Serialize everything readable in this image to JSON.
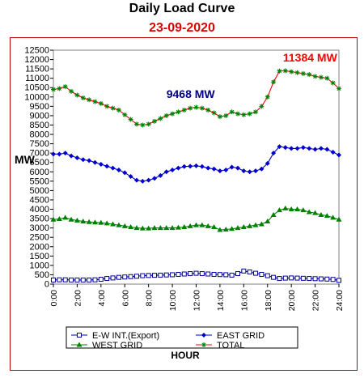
{
  "chart_data": {
    "type": "line",
    "title": "Daily Load Curve",
    "subtitle": "23-09-2020",
    "xlabel": "HOUR",
    "ylabel": "MW",
    "ylim": [
      0,
      12500
    ],
    "ytick_step": 500,
    "yticks": [
      "0",
      "500",
      "1000",
      "1500",
      "2000",
      "2500",
      "3000",
      "3500",
      "4000",
      "4500",
      "5000",
      "5500",
      "6000",
      "6500",
      "7000",
      "7500",
      "8000",
      "8500",
      "9000",
      "9500",
      "10000",
      "10500",
      "11000",
      "11500",
      "12000",
      "12500"
    ],
    "xlim": [
      0,
      24
    ],
    "xticks": [
      0,
      2,
      4,
      6,
      8,
      10,
      12,
      14,
      16,
      18,
      20,
      22,
      24
    ],
    "xtick_labels": [
      "0:00",
      "2:00",
      "4:00",
      "6:00",
      "8:00",
      "10:00",
      "12:00",
      "14:00",
      "16:00",
      "18:00",
      "20:00",
      "22:00",
      "24:00"
    ],
    "x": [
      0,
      0.5,
      1,
      1.5,
      2,
      2.5,
      3,
      3.5,
      4,
      4.5,
      5,
      5.5,
      6,
      6.5,
      7,
      7.5,
      8,
      8.5,
      9,
      9.5,
      10,
      10.5,
      11,
      11.5,
      12,
      12.5,
      13,
      13.5,
      14,
      14.5,
      15,
      15.5,
      16,
      16.5,
      17,
      17.5,
      18,
      18.5,
      19,
      19.5,
      20,
      20.5,
      21,
      21.5,
      22,
      22.5,
      23,
      23.5,
      24
    ],
    "series": [
      {
        "name": "E-W INT.(Export)",
        "color": "#000099",
        "marker": "square-open",
        "values": [
          220,
          230,
          230,
          220,
          220,
          220,
          220,
          230,
          260,
          300,
          330,
          360,
          380,
          400,
          420,
          450,
          460,
          470,
          480,
          490,
          500,
          520,
          540,
          560,
          580,
          560,
          540,
          520,
          510,
          500,
          480,
          560,
          700,
          650,
          580,
          520,
          450,
          360,
          300,
          320,
          330,
          320,
          310,
          300,
          290,
          280,
          270,
          250,
          200
        ]
      },
      {
        "name": "EAST GRID",
        "color": "#0000cc",
        "marker": "diamond",
        "values": [
          6950,
          6950,
          7000,
          6850,
          6750,
          6650,
          6600,
          6500,
          6400,
          6300,
          6200,
          6100,
          5950,
          5750,
          5550,
          5500,
          5550,
          5650,
          5800,
          6000,
          6100,
          6200,
          6280,
          6300,
          6320,
          6280,
          6200,
          6150,
          6050,
          6100,
          6250,
          6200,
          6050,
          6000,
          6050,
          6150,
          6450,
          7000,
          7350,
          7300,
          7250,
          7250,
          7300,
          7250,
          7200,
          7250,
          7200,
          7050,
          6900
        ]
      },
      {
        "name": "WEST GRID",
        "color": "#008000",
        "marker": "triangle",
        "values": [
          3450,
          3480,
          3550,
          3450,
          3400,
          3350,
          3320,
          3300,
          3280,
          3250,
          3200,
          3150,
          3100,
          3050,
          3000,
          2980,
          2980,
          3000,
          3000,
          3000,
          3000,
          3020,
          3050,
          3100,
          3150,
          3150,
          3100,
          3050,
          2900,
          2920,
          2950,
          3000,
          3050,
          3100,
          3150,
          3200,
          3350,
          3700,
          3950,
          4050,
          4000,
          4000,
          3950,
          3850,
          3800,
          3700,
          3650,
          3550,
          3450
        ]
      },
      {
        "name": "TOTAL",
        "color": "#ff0000",
        "marker": "star",
        "values": [
          10400,
          10450,
          10550,
          10300,
          10100,
          9950,
          9850,
          9750,
          9650,
          9500,
          9400,
          9300,
          9050,
          8800,
          8550,
          8500,
          8550,
          8700,
          8850,
          9000,
          9100,
          9200,
          9300,
          9400,
          9450,
          9400,
          9300,
          9150,
          8950,
          9000,
          9200,
          9100,
          9050,
          9100,
          9200,
          9500,
          10000,
          10800,
          11384,
          11400,
          11350,
          11300,
          11250,
          11200,
          11100,
          11050,
          11000,
          10750,
          10450
        ]
      }
    ],
    "annotations": [
      {
        "text": "11384 MW",
        "x": 19.3,
        "y": 11900,
        "color": "#ff0000"
      },
      {
        "text": "9468 MW",
        "x": 9.5,
        "y": 9950,
        "color": "#000080"
      }
    ],
    "grid": false,
    "legend_position": "bottom",
    "plot_background": "#ffffff",
    "plot_border": "#808080",
    "frame_color": "#c00000"
  }
}
